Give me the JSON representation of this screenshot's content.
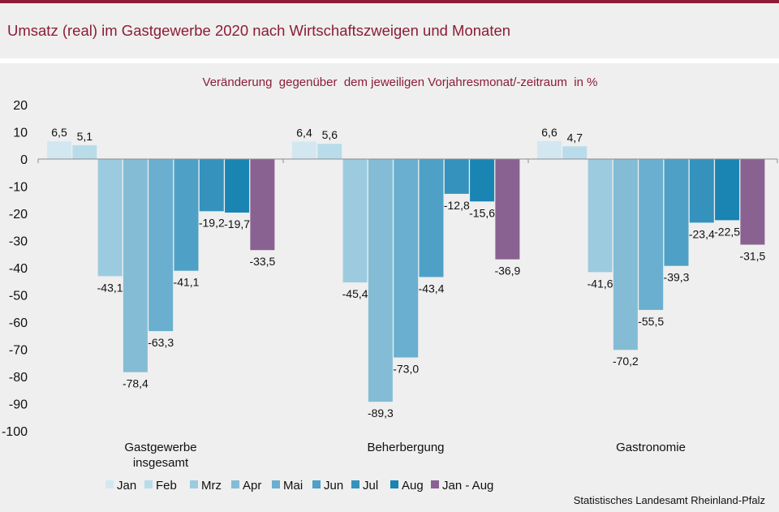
{
  "title": "Umsatz (real) im Gastgewerbe 2020 nach Wirtschaftszweigen und Monaten",
  "source": "Statistisches Landesamt Rheinland-Pfalz",
  "chart_data": {
    "type": "bar",
    "subtitle": "Veränderung  gegenüber  dem jeweiligen Vorjahresmonat/-zeitraum  in %",
    "categories": [
      "Gastgewerbe insgesamt",
      "Beherbergung",
      "Gastronomie"
    ],
    "category_lines": [
      [
        "Gastgewerbe",
        "insgesamt"
      ],
      [
        "Beherbergung"
      ],
      [
        "Gastronomie"
      ]
    ],
    "ylim": [
      -100,
      20
    ],
    "yticks": [
      20,
      10,
      0,
      -10,
      -20,
      -30,
      -40,
      -50,
      -60,
      -70,
      -80,
      -90,
      -100
    ],
    "grid": false,
    "legend_position": "bottom",
    "series": [
      {
        "name": "Jan",
        "color": "#d3e7f1",
        "values": [
          6.5,
          6.4,
          6.6
        ],
        "labels": [
          "6,5",
          "6,4",
          "6,6"
        ]
      },
      {
        "name": "Feb",
        "color": "#b9dcea",
        "values": [
          5.1,
          5.6,
          4.7
        ],
        "labels": [
          "5,1",
          "5,6",
          "4,7"
        ]
      },
      {
        "name": "Mrz",
        "color": "#9ccbe0",
        "values": [
          -43.1,
          -45.4,
          -41.6
        ],
        "labels": [
          "-43,1",
          "-45,4",
          "-41,6"
        ]
      },
      {
        "name": "Apr",
        "color": "#84bcd6",
        "values": [
          -78.4,
          -89.3,
          -70.2
        ],
        "labels": [
          "-78,4",
          "-89,3",
          "-70,2"
        ]
      },
      {
        "name": "Mai",
        "color": "#6aafcf",
        "values": [
          -63.3,
          -73.0,
          -55.5
        ],
        "labels": [
          "-63,3",
          "-73,0",
          "-55,5"
        ]
      },
      {
        "name": "Jun",
        "color": "#4fa0c6",
        "values": [
          -41.1,
          -43.4,
          -39.3
        ],
        "labels": [
          "-41,1",
          "-43,4",
          "-39,3"
        ]
      },
      {
        "name": "Jul",
        "color": "#3592bd",
        "values": [
          -19.2,
          -12.8,
          -23.4
        ],
        "labels": [
          "-19,2",
          "-12,8",
          "-23,4"
        ]
      },
      {
        "name": "Aug",
        "color": "#1a84b3",
        "values": [
          -19.7,
          -15.6,
          -22.5
        ],
        "labels": [
          "-19,7",
          "-15,6",
          "-22,5"
        ]
      },
      {
        "name": "Jan - Aug",
        "color": "#8a6291",
        "values": [
          -33.5,
          -36.9,
          -31.5
        ],
        "labels": [
          "-33,5",
          "-36,9",
          "-31,5"
        ]
      }
    ]
  }
}
